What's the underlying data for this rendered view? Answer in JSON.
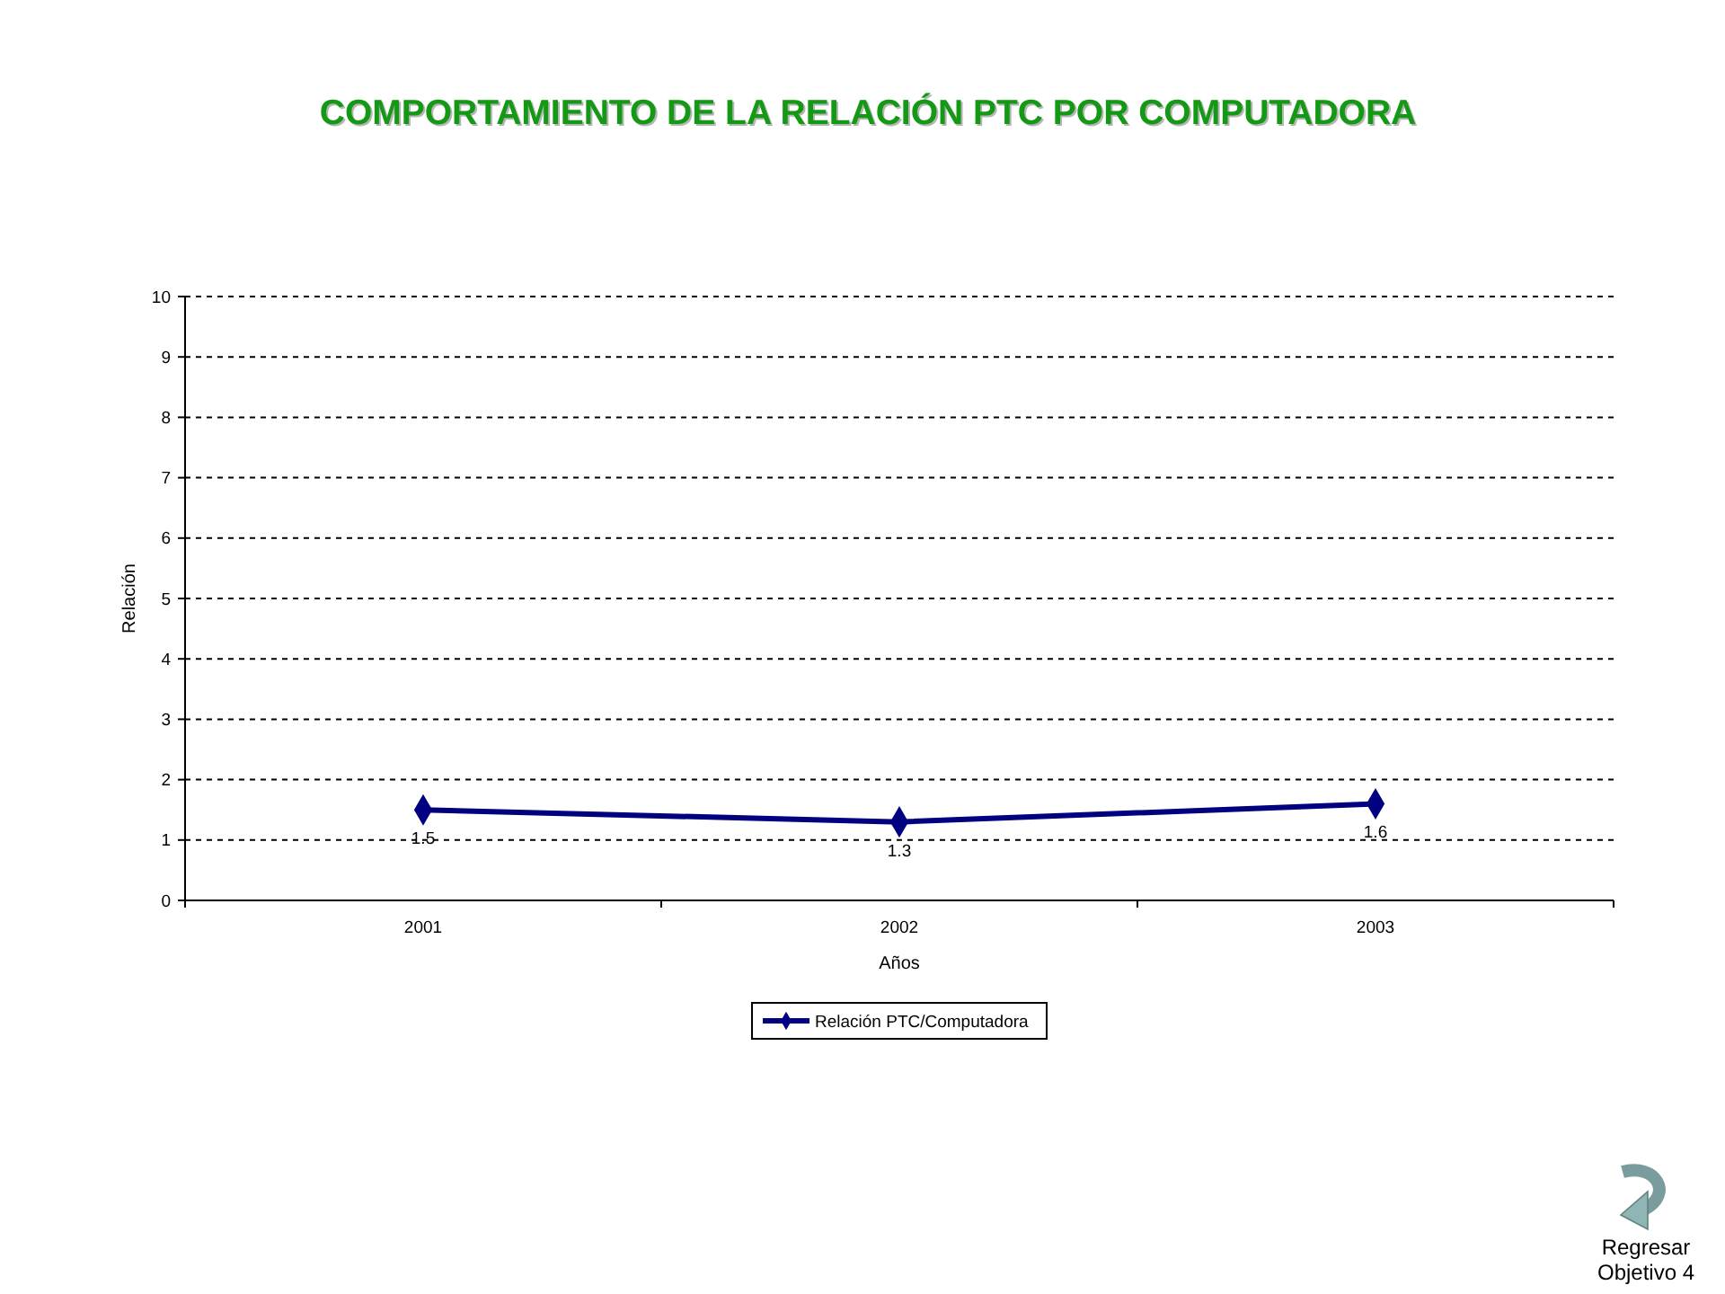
{
  "chart_data": {
    "type": "line",
    "title": "COMPORTAMIENTO DE LA RELACIÓN PTC POR COMPUTADORA",
    "xlabel": "Años",
    "ylabel": "Relación",
    "categories": [
      "2001",
      "2002",
      "2003"
    ],
    "series": [
      {
        "name": "Relación PTC/Computadora",
        "color": "#000080",
        "values": [
          1.5,
          1.3,
          1.6
        ]
      }
    ],
    "ylim": [
      0,
      10
    ],
    "yticks": [
      0,
      1,
      2,
      3,
      4,
      5,
      6,
      7,
      8,
      9,
      10
    ],
    "grid": "y",
    "legend": "bottom",
    "marker": "diamond",
    "line_style": "solid",
    "data_labels": true,
    "annotations": [
      "Regresar\nObjetivo 4"
    ]
  }
}
